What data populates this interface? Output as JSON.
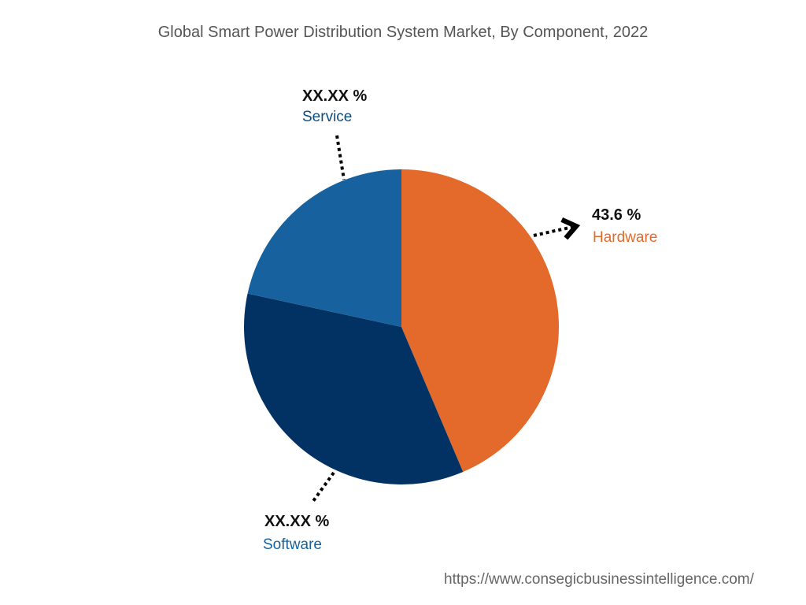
{
  "chart_data": {
    "type": "pie",
    "title": "Global Smart Power Distribution System Market, By Component, 2022",
    "slices": [
      {
        "name": "Hardware",
        "value": 43.6,
        "label": "43.6 %",
        "color": "#E36A2A"
      },
      {
        "name": "Software",
        "value": 34.8,
        "label": "XX.XX %",
        "color": "#023263"
      },
      {
        "name": "Service",
        "value": 21.6,
        "label": "XX.XX %",
        "color": "#17629E"
      }
    ],
    "start_angle": "12 o'clock",
    "direction": "clockwise"
  },
  "source_url": "https://www.consegicbusinessintelligence.com/"
}
